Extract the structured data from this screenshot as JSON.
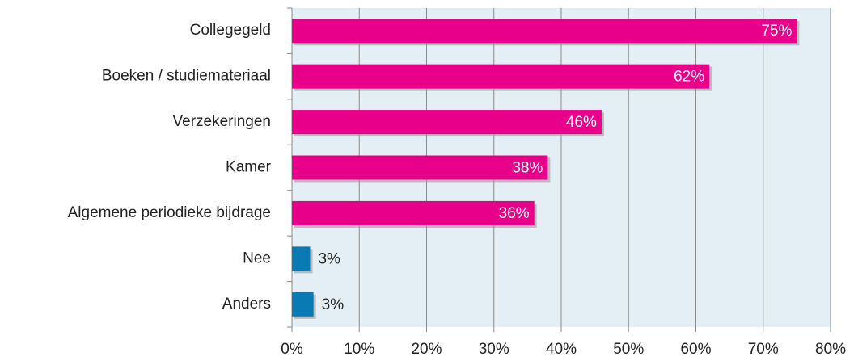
{
  "chart_data": {
    "type": "bar",
    "orientation": "horizontal",
    "categories": [
      "Collegegeld",
      "Boeken / studiemateriaal",
      "Verzekeringen",
      "Kamer",
      "Algemene periodieke bijdrage",
      "Nee",
      "Anders"
    ],
    "values": [
      75,
      62,
      46,
      38,
      36,
      2.7,
      3.2
    ],
    "value_labels": [
      "75%",
      "62%",
      "46%",
      "38%",
      "36%",
      "3%",
      "3%"
    ],
    "colors": [
      "#e8008a",
      "#e8008a",
      "#e8008a",
      "#e8008a",
      "#e8008a",
      "#0a7ab5",
      "#0a7ab5"
    ],
    "xlim": [
      0,
      80
    ],
    "xticks": [
      {
        "value": 0,
        "label": "0%"
      },
      {
        "value": 10,
        "label": "10%"
      },
      {
        "value": 20,
        "label": "20%"
      },
      {
        "value": 30,
        "label": "30%"
      },
      {
        "value": 40,
        "label": "40%"
      },
      {
        "value": 50,
        "label": "50%"
      },
      {
        "value": 60,
        "label": "60%"
      },
      {
        "value": 70,
        "label": "70%"
      },
      {
        "value": 80,
        "label": "80%"
      }
    ],
    "grid": true,
    "plot_background": "#e4eff5"
  }
}
